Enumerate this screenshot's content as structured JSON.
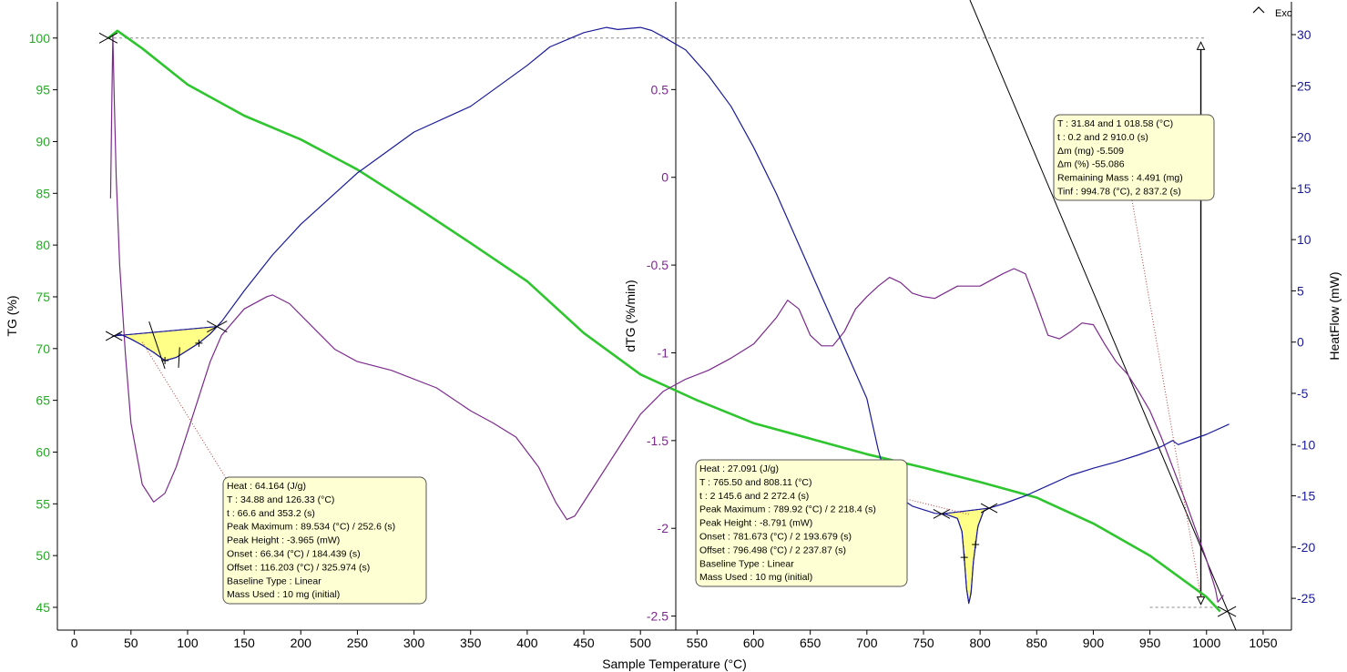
{
  "chart_data": {
    "type": "line",
    "title": "",
    "xlabel": "Sample Temperature (°C)",
    "xlim": [
      -15,
      1075
    ],
    "x_ticks": [
      0,
      50,
      100,
      150,
      200,
      250,
      300,
      350,
      400,
      450,
      500,
      550,
      600,
      650,
      700,
      750,
      800,
      850,
      900,
      950,
      1000,
      1050
    ],
    "y_axes": [
      {
        "id": "tg",
        "label": "TG (%)",
        "side": "left",
        "color": "#22aa22",
        "lim": [
          42.8,
          103.5
        ],
        "ticks": [
          45,
          50,
          55,
          60,
          65,
          70,
          75,
          80,
          85,
          90,
          95,
          100
        ]
      },
      {
        "id": "dtg",
        "label": "dTG (%/min)",
        "side": "middle",
        "color": "#7b2a8c",
        "lim": [
          -2.58,
          1.0
        ],
        "ticks": [
          -2.5,
          -2,
          -1.5,
          -1,
          -0.5,
          0,
          0.5
        ]
      },
      {
        "id": "hf",
        "label": "HeatFlow (mW)",
        "side": "right",
        "color": "#1a1a9a",
        "lim": [
          -28.1,
          33.2
        ],
        "ticks": [
          -25,
          -20,
          -15,
          -10,
          -5,
          0,
          5,
          10,
          15,
          20,
          25,
          30
        ]
      }
    ],
    "exo_label": "Exo",
    "series": [
      {
        "axis": "tg",
        "color": "#2ec52e",
        "x": [
          30,
          38,
          60,
          100,
          150,
          200,
          250,
          300,
          350,
          400,
          450,
          500,
          550,
          600,
          650,
          700,
          750,
          800,
          850,
          900,
          950,
          1000,
          1012
        ],
        "y": [
          100,
          100.7,
          99,
          95.5,
          92.5,
          90.2,
          87.3,
          83.8,
          80.2,
          76.5,
          71.5,
          67.5,
          65,
          62.8,
          61.3,
          59.8,
          58.5,
          57.1,
          55.6,
          53.1,
          50,
          46,
          44.6
        ]
      },
      {
        "axis": "dtg",
        "color": "#7b2a8c",
        "x": [
          32,
          33,
          34,
          35,
          37,
          40,
          45,
          50,
          60,
          70,
          80,
          90,
          100,
          110,
          120,
          130,
          150,
          170,
          175,
          190,
          210,
          230,
          250,
          280,
          320,
          350,
          370,
          390,
          410,
          425,
          435,
          442,
          460,
          480,
          500,
          520,
          540,
          560,
          580,
          600,
          620,
          630,
          640,
          650,
          660,
          670,
          680,
          690,
          700,
          710,
          720,
          730,
          740,
          750,
          760,
          780,
          800,
          820,
          830,
          840,
          850,
          860,
          870,
          880,
          890,
          900,
          910,
          920,
          930,
          940,
          950,
          960,
          970,
          980,
          990,
          1000,
          1008,
          1010,
          1015
        ],
        "y": [
          -0.12,
          0.4,
          0.81,
          0.5,
          0.0,
          -0.5,
          -1.0,
          -1.4,
          -1.75,
          -1.85,
          -1.8,
          -1.65,
          -1.45,
          -1.25,
          -1.05,
          -0.9,
          -0.75,
          -0.68,
          -0.67,
          -0.72,
          -0.85,
          -0.98,
          -1.05,
          -1.1,
          -1.2,
          -1.33,
          -1.4,
          -1.48,
          -1.65,
          -1.85,
          -1.95,
          -1.93,
          -1.75,
          -1.55,
          -1.35,
          -1.22,
          -1.15,
          -1.1,
          -1.03,
          -0.95,
          -0.8,
          -0.7,
          -0.75,
          -0.9,
          -0.96,
          -0.96,
          -0.88,
          -0.75,
          -0.68,
          -0.62,
          -0.57,
          -0.6,
          -0.66,
          -0.68,
          -0.69,
          -0.62,
          -0.62,
          -0.55,
          -0.52,
          -0.55,
          -0.72,
          -0.9,
          -0.92,
          -0.88,
          -0.83,
          -0.84,
          -0.95,
          -1.05,
          -1.12,
          -1.22,
          -1.33,
          -1.48,
          -1.65,
          -1.82,
          -2.0,
          -2.18,
          -2.35,
          -2.42,
          -2.38
        ]
      },
      {
        "axis": "hf",
        "color": "#1a1a9a",
        "x": [
          33,
          35,
          40,
          50,
          60,
          70,
          80,
          90,
          100,
          110,
          120,
          130,
          150,
          175,
          200,
          250,
          300,
          350,
          400,
          420,
          450,
          470,
          480,
          500,
          510,
          520,
          540,
          560,
          580,
          600,
          620,
          640,
          660,
          680,
          700,
          705,
          710,
          720,
          740,
          760,
          770,
          780,
          784,
          786,
          788,
          790,
          792,
          794,
          798,
          803,
          808,
          820,
          840,
          860,
          880,
          900,
          920,
          940,
          960,
          970,
          975,
          990,
          1000,
          1020
        ],
        "y": [
          0.5,
          0.6,
          0.8,
          0.3,
          -0.3,
          -1.0,
          -1.8,
          -1.5,
          -0.8,
          -0.1,
          0.8,
          2.0,
          5.0,
          8.5,
          11.5,
          16.5,
          20.5,
          23.0,
          27.0,
          28.8,
          30.2,
          30.7,
          30.5,
          30.7,
          30.4,
          29.8,
          28.5,
          26.0,
          23.0,
          19.0,
          14.5,
          9.5,
          4.5,
          -0.5,
          -5.5,
          -8.0,
          -10.5,
          -14.5,
          -16.0,
          -16.7,
          -16.8,
          -17.2,
          -18.5,
          -21.0,
          -24.0,
          -25.5,
          -24.5,
          -21.5,
          -18.0,
          -16.5,
          -16.2,
          -15.8,
          -15.0,
          -14.0,
          -13.0,
          -12.3,
          -11.7,
          -11.0,
          -10.2,
          -9.6,
          -10.0,
          -9.4,
          -9.0,
          -8.0
        ]
      }
    ],
    "reference_lines": [
      {
        "axis": "tg",
        "x": [
          30,
          1000
        ],
        "y": [
          100,
          100
        ],
        "style": "dashed"
      },
      {
        "axis": "tg",
        "x": [
          950,
          1012
        ],
        "y": [
          45,
          45
        ],
        "style": "dashed"
      }
    ],
    "annotations": [
      {
        "lines": [
          "Heat :  64.164 (J/g)",
          "T : 34.88 and 126.33 (°C)",
          "t : 66.6 and 353.2 (s)",
          "Peak Maximum :  89.534 (°C) / 252.6 (s)",
          "Peak Height :  -3.965 (mW)",
          "Onset :  66.34 (°C) / 184.439 (s)",
          "Offset :  116.203 (°C) / 325.974 (s)",
          "Baseline Type :  Linear",
          "Mass Used :  10 mg (initial)"
        ]
      },
      {
        "lines": [
          "Heat :  27.091 (J/g)",
          "T : 765.50 and 808.11 (°C)",
          "t : 2 145.6 and 2 272.4 (s)",
          "Peak Maximum :  789.92 (°C) / 2 218.4 (s)",
          "Peak Height :  -8.791 (mW)",
          "Onset :  781.673 (°C) / 2 193.679 (s)",
          "Offset :  796.498 (°C) / 2 237.87 (s)",
          "Baseline Type :  Linear",
          "Mass Used :  10 mg (initial)"
        ]
      },
      {
        "lines": [
          "T : 31.84 and 1 018.58 (°C)",
          "t : 0.2 and 2 910.0 (s)",
          "Δm (mg) -5.509",
          "Δm (%) -55.086",
          "Remaining Mass : 4.491 (mg)",
          "Tinf : 994.78 (°C), 2 837.2 (s)"
        ]
      }
    ]
  }
}
